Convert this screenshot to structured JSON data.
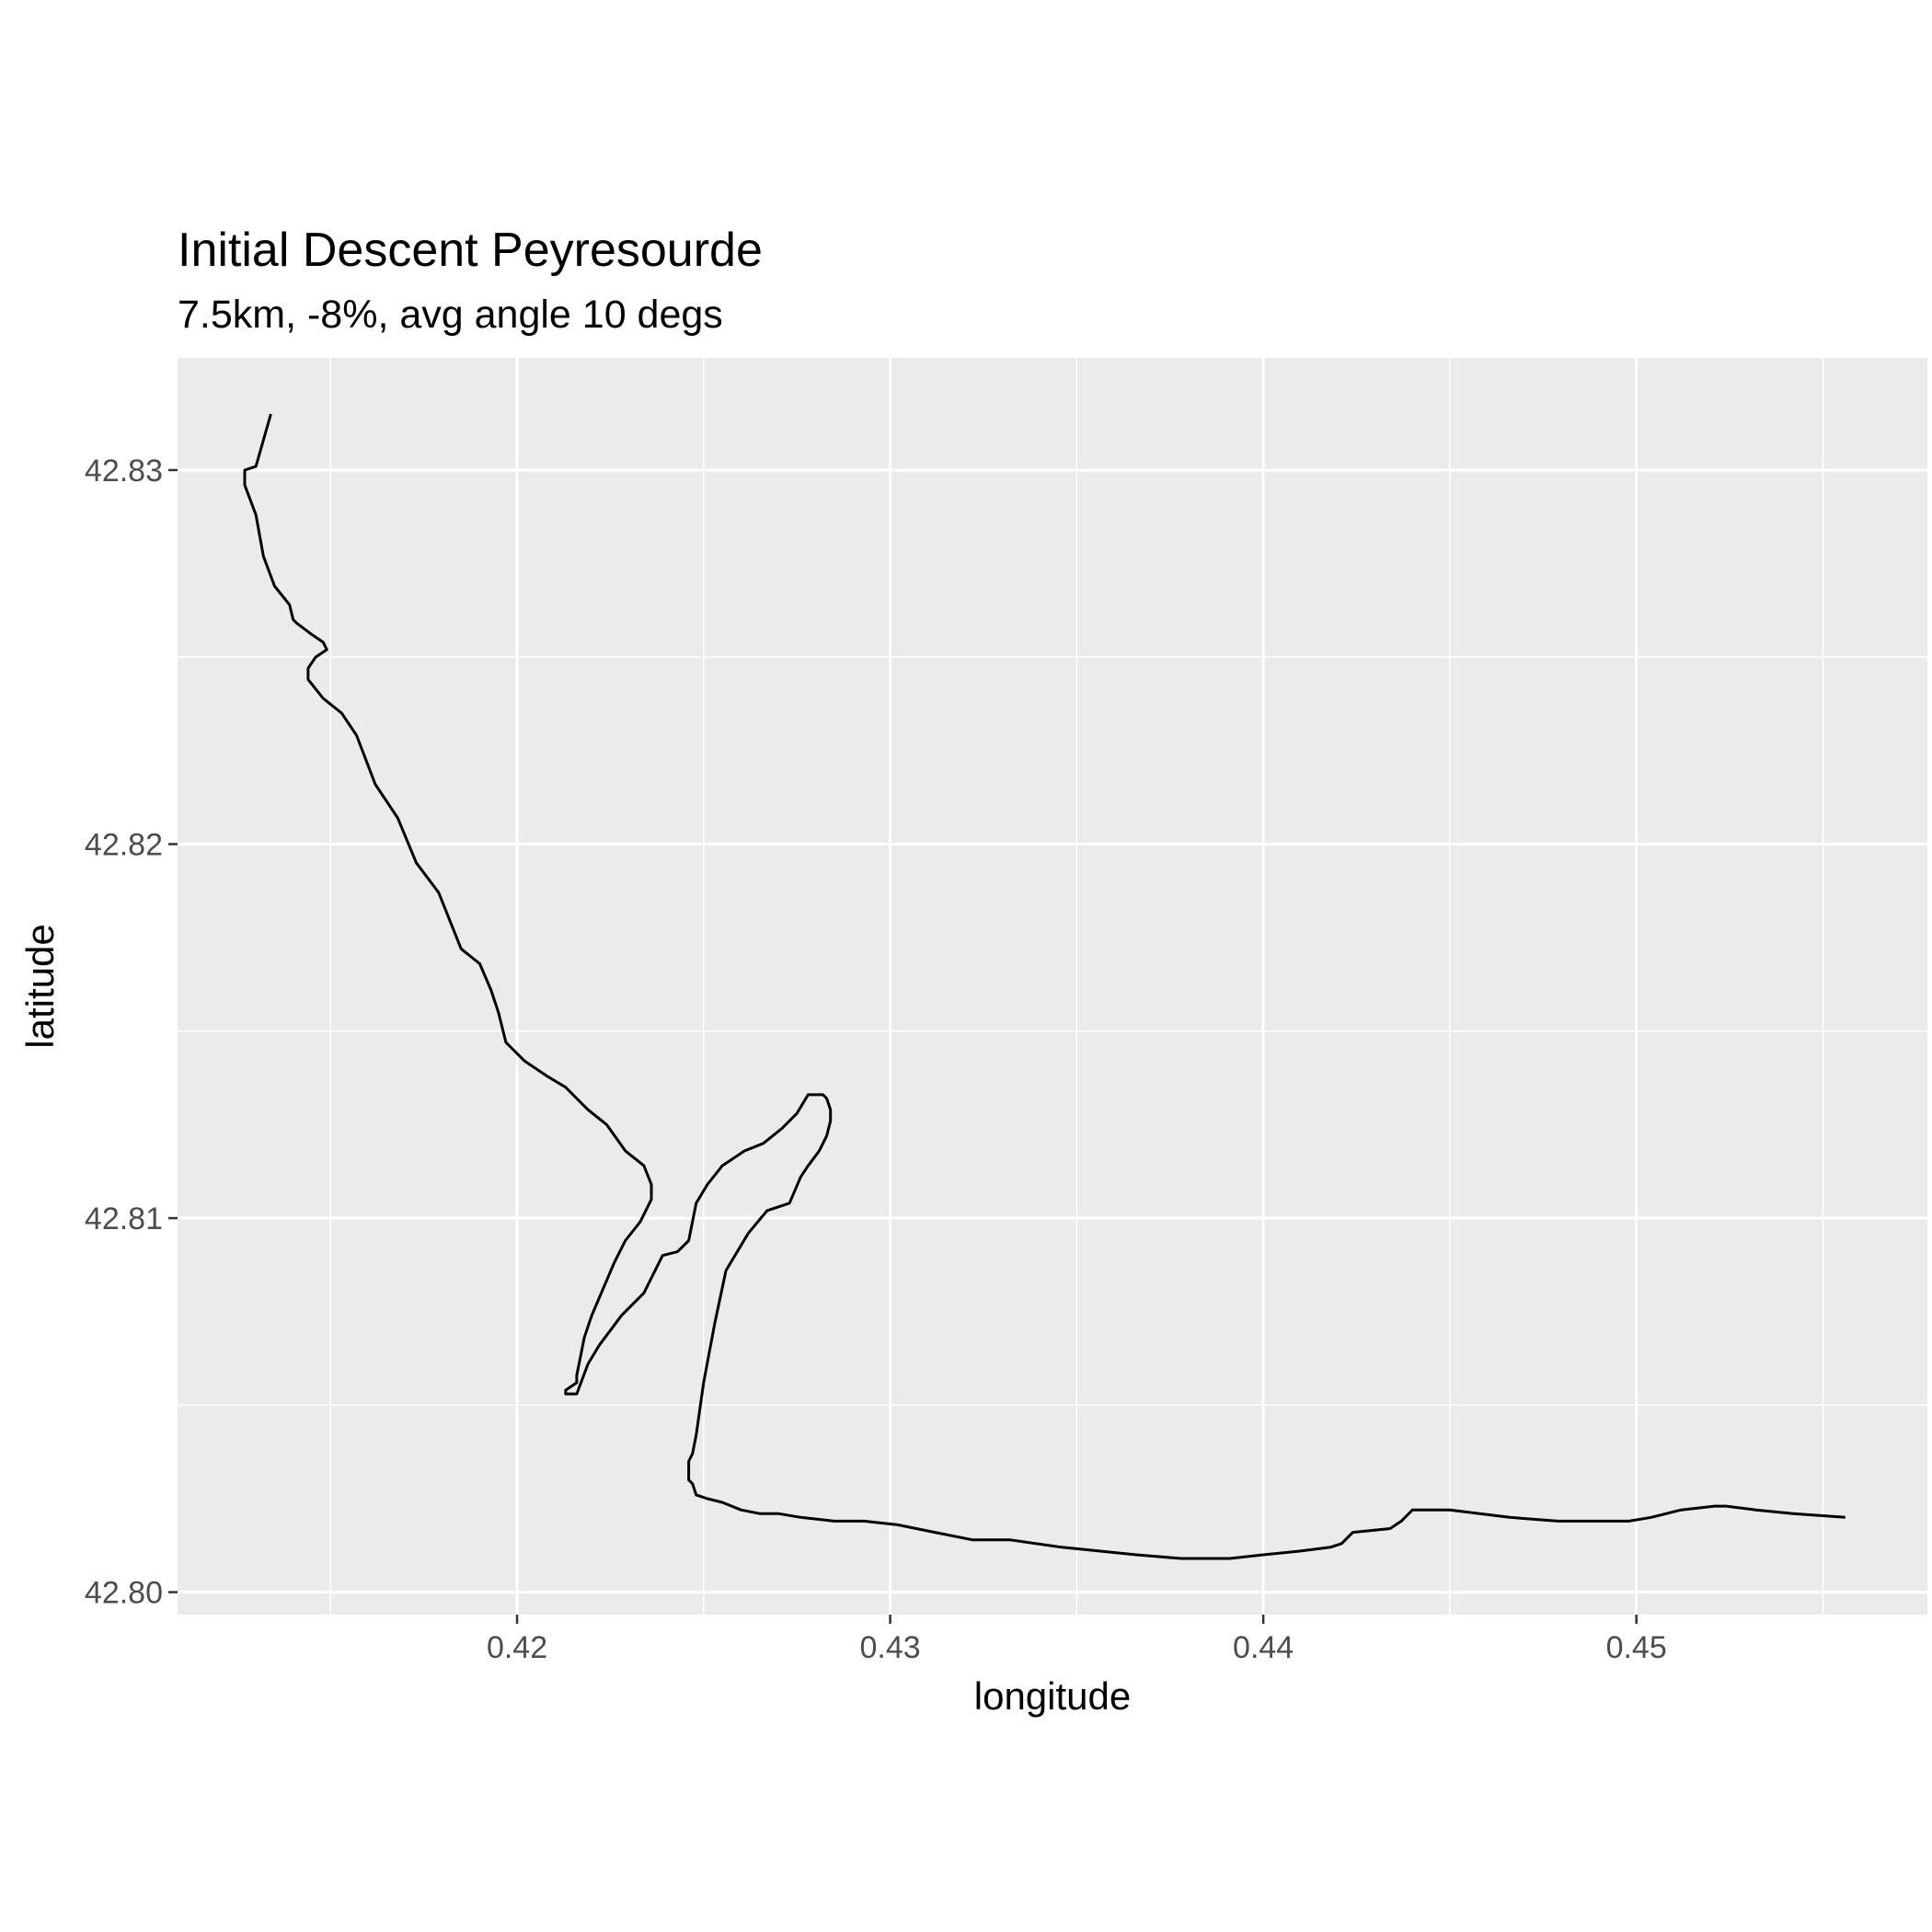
{
  "chart_data": {
    "type": "line",
    "title": "Initial Descent Peyresourde",
    "subtitle": "7.5km, -8%, avg angle 10 degs",
    "xlabel": "longitude",
    "ylabel": "latitude",
    "xlim": [
      0.4109,
      0.4578
    ],
    "ylim": [
      42.7994,
      42.833
    ],
    "x_ticks": [
      0.42,
      0.43,
      0.44,
      0.45
    ],
    "x_tick_labels": [
      "0.42",
      "0.43",
      "0.44",
      "0.45"
    ],
    "y_ticks": [
      42.8,
      42.81,
      42.82,
      42.83
    ],
    "y_tick_labels": [
      "42.80",
      "42.81",
      "42.82",
      "42.83"
    ],
    "grid": true,
    "panel_background": "#ebebeb",
    "gridline_color": "#ffffff",
    "line_color": "#000000",
    "series": [
      {
        "x": [
          0.4134,
          0.413,
          0.4127,
          0.4127,
          0.413,
          0.4132,
          0.4135,
          0.4139,
          0.414,
          0.4141,
          0.4145,
          0.4148,
          0.4149,
          0.4146,
          0.4144,
          0.4144,
          0.4148,
          0.4153,
          0.4157,
          0.4162,
          0.4168,
          0.4173,
          0.4179,
          0.4185,
          0.419,
          0.4193,
          0.4195,
          0.4197,
          0.4202,
          0.4208,
          0.4213,
          0.4216,
          0.4219,
          0.4224,
          0.4229,
          0.4234,
          0.4236,
          0.4236,
          0.4233,
          0.4229,
          0.4226,
          0.422,
          0.4218,
          0.4217,
          0.4216,
          0.4216,
          0.4213,
          0.4213,
          0.4216,
          0.4219,
          0.4222,
          0.4228,
          0.4234,
          0.4239,
          0.4243,
          0.4246,
          0.4248,
          0.4251,
          0.4255,
          0.4261,
          0.4266,
          0.4271,
          0.4275,
          0.4278,
          0.428,
          0.4282,
          0.4283,
          0.4284,
          0.4284,
          0.4283,
          0.4281,
          0.4278,
          0.4276,
          0.4273,
          0.4267,
          0.4262,
          0.4256,
          0.4253,
          0.425,
          0.4248,
          0.4247,
          0.4246,
          0.4246,
          0.4246,
          0.4247,
          0.4248,
          0.4251,
          0.4255,
          0.426,
          0.4265,
          0.427,
          0.4276,
          0.4285,
          0.4293,
          0.4302,
          0.4312,
          0.4322,
          0.4332,
          0.4346,
          0.4356,
          0.4366,
          0.4378,
          0.4391,
          0.44,
          0.441,
          0.4418,
          0.4421,
          0.4424,
          0.4434,
          0.4437,
          0.444,
          0.4443,
          0.445,
          0.4458,
          0.4466,
          0.4479,
          0.449,
          0.4498,
          0.4504,
          0.4512,
          0.4521,
          0.4524,
          0.4532,
          0.4542,
          0.4556
        ],
        "y": [
          42.8315,
          42.8301,
          42.83,
          42.8296,
          42.8288,
          42.8277,
          42.8269,
          42.8264,
          42.826,
          42.8259,
          42.8256,
          42.8254,
          42.8252,
          42.825,
          42.8247,
          42.8244,
          42.8239,
          42.8235,
          42.8229,
          42.8216,
          42.8207,
          42.8195,
          42.8187,
          42.8172,
          42.8168,
          42.8161,
          42.8155,
          42.8147,
          42.8142,
          42.8138,
          42.8135,
          42.8132,
          42.8129,
          42.8125,
          42.8118,
          42.8114,
          42.8109,
          42.8105,
          42.8099,
          42.8094,
          42.8088,
          42.8074,
          42.8068,
          42.8063,
          42.8058,
          42.8056,
          42.8054,
          42.8053,
          42.8053,
          42.8061,
          42.8066,
          42.8074,
          42.808,
          42.809,
          42.8091,
          42.8094,
          42.8104,
          42.8109,
          42.8114,
          42.8118,
          42.812,
          42.8124,
          42.8128,
          42.8133,
          42.8133,
          42.8133,
          42.8132,
          42.8129,
          42.8126,
          42.8122,
          42.8118,
          42.8114,
          42.8111,
          42.8104,
          42.8102,
          42.8096,
          42.8086,
          42.8072,
          42.8056,
          42.8042,
          42.8037,
          42.8035,
          42.8032,
          42.803,
          42.8029,
          42.8026,
          42.8025,
          42.8024,
          42.8022,
          42.8021,
          42.8021,
          42.802,
          42.8019,
          42.8019,
          42.8018,
          42.8016,
          42.8014,
          42.8014,
          42.8012,
          42.8011,
          42.801,
          42.8009,
          42.8009,
          42.801,
          42.8011,
          42.8012,
          42.8013,
          42.8016,
          42.8017,
          42.8019,
          42.8022,
          42.8022,
          42.8022,
          42.8021,
          42.802,
          42.8019,
          42.8019,
          42.8019,
          42.802,
          42.8022,
          42.8023,
          42.8023,
          42.8022,
          42.8021,
          42.802
        ]
      }
    ]
  }
}
